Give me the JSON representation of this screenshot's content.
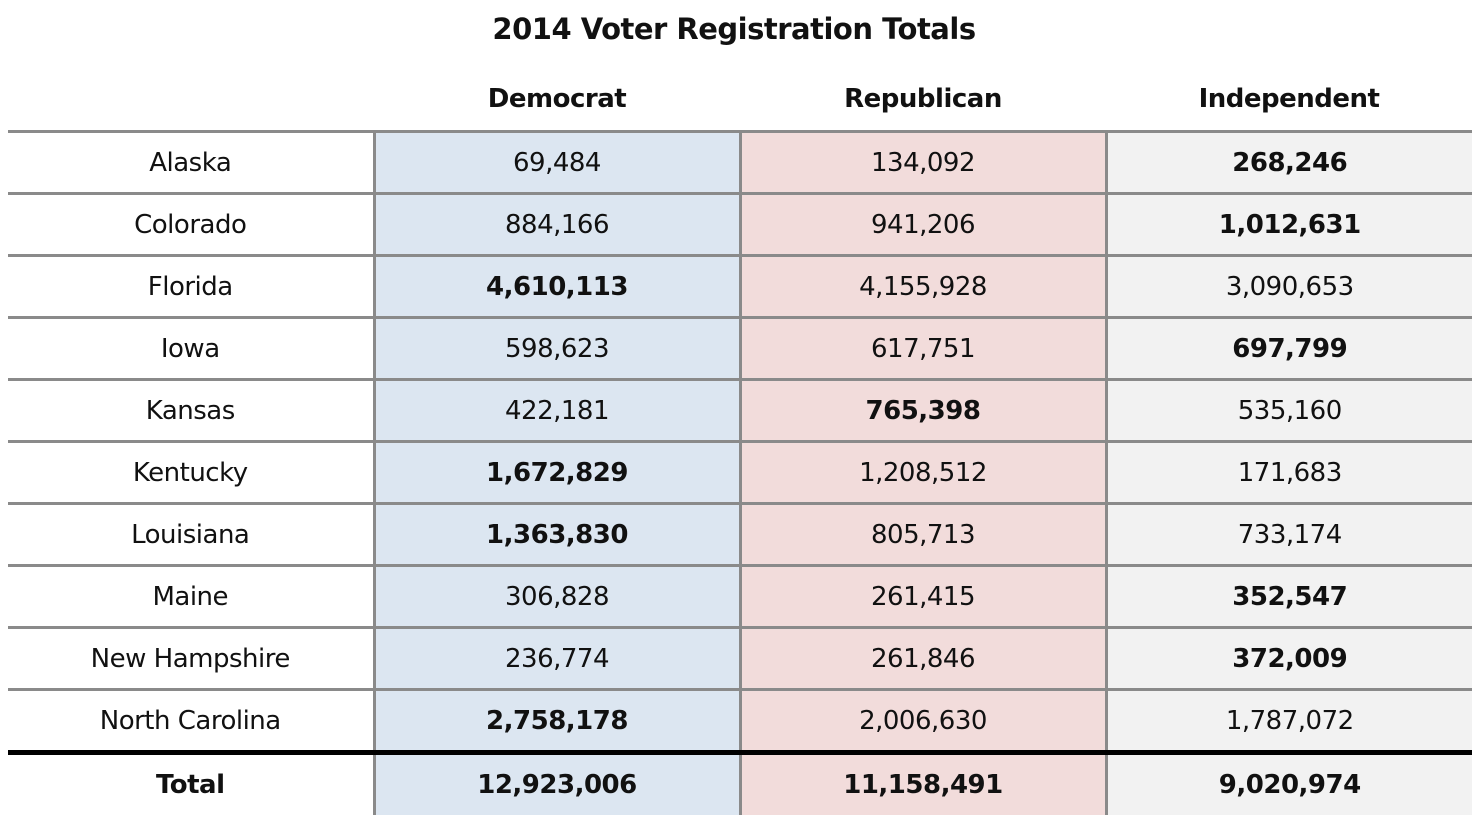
{
  "chart_data": {
    "type": "table",
    "title": "2014 Voter Registration Totals",
    "columns": [
      "",
      "Democrat",
      "Republican",
      "Independent"
    ],
    "colors": {
      "Democrat": "#dce6f1",
      "Republican": "#f2dcdb",
      "Independent": "#f2f2f2"
    },
    "rows": [
      {
        "state": "Alaska",
        "values": [
          "69,484",
          "134,092",
          "268,246"
        ]
      },
      {
        "state": "Colorado",
        "values": [
          "884,166",
          "941,206",
          "1,012,631"
        ]
      },
      {
        "state": "Florida",
        "values": [
          "4,610,113",
          "4,155,928",
          "3,090,653"
        ]
      },
      {
        "state": "Iowa",
        "values": [
          "598,623",
          "617,751",
          "697,799"
        ]
      },
      {
        "state": "Kansas",
        "values": [
          "422,181",
          "765,398",
          "535,160"
        ]
      },
      {
        "state": "Kentucky",
        "values": [
          "1,672,829",
          "1,208,512",
          "171,683"
        ]
      },
      {
        "state": "Louisiana",
        "values": [
          "1,363,830",
          "805,713",
          "733,174"
        ]
      },
      {
        "state": "Maine",
        "values": [
          "306,828",
          "261,415",
          "352,547"
        ]
      },
      {
        "state": "New Hampshire",
        "values": [
          "236,774",
          "261,846",
          "372,009"
        ]
      },
      {
        "state": "North Carolina",
        "values": [
          "2,758,178",
          "2,006,630",
          "1,787,072"
        ]
      }
    ],
    "total": {
      "label": "Total",
      "values": [
        "12,923,006",
        "11,158,491",
        "9,020,974"
      ]
    }
  }
}
